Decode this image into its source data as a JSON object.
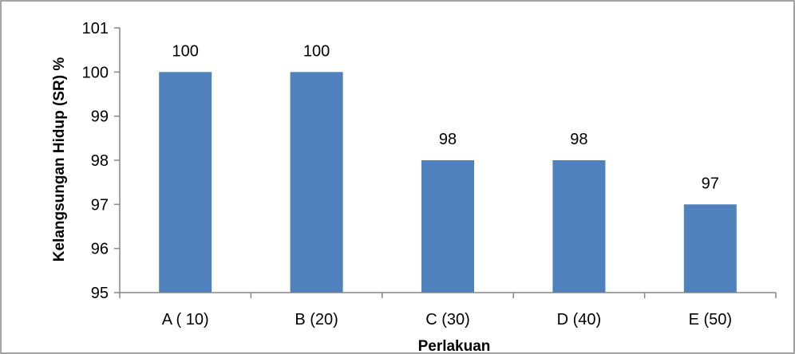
{
  "chart_data": {
    "type": "bar",
    "categories": [
      "A ( 10)",
      "B (20)",
      "C (30)",
      "D (40)",
      "E (50)"
    ],
    "values": [
      100,
      100,
      98,
      98,
      97
    ],
    "data_labels": [
      "100",
      "100",
      "98",
      "98",
      "97"
    ],
    "title": "",
    "xlabel": "Perlakuan",
    "ylabel": "Kelangsungan Hidup (SR) %",
    "ylim": [
      95,
      101
    ],
    "yticks": [
      "95",
      "96",
      "97",
      "98",
      "99",
      "100",
      "101"
    ],
    "grid": false,
    "legend": "none",
    "bar_color": "#4F81BD",
    "axis_color": "#868686",
    "border_color": "#868686"
  }
}
